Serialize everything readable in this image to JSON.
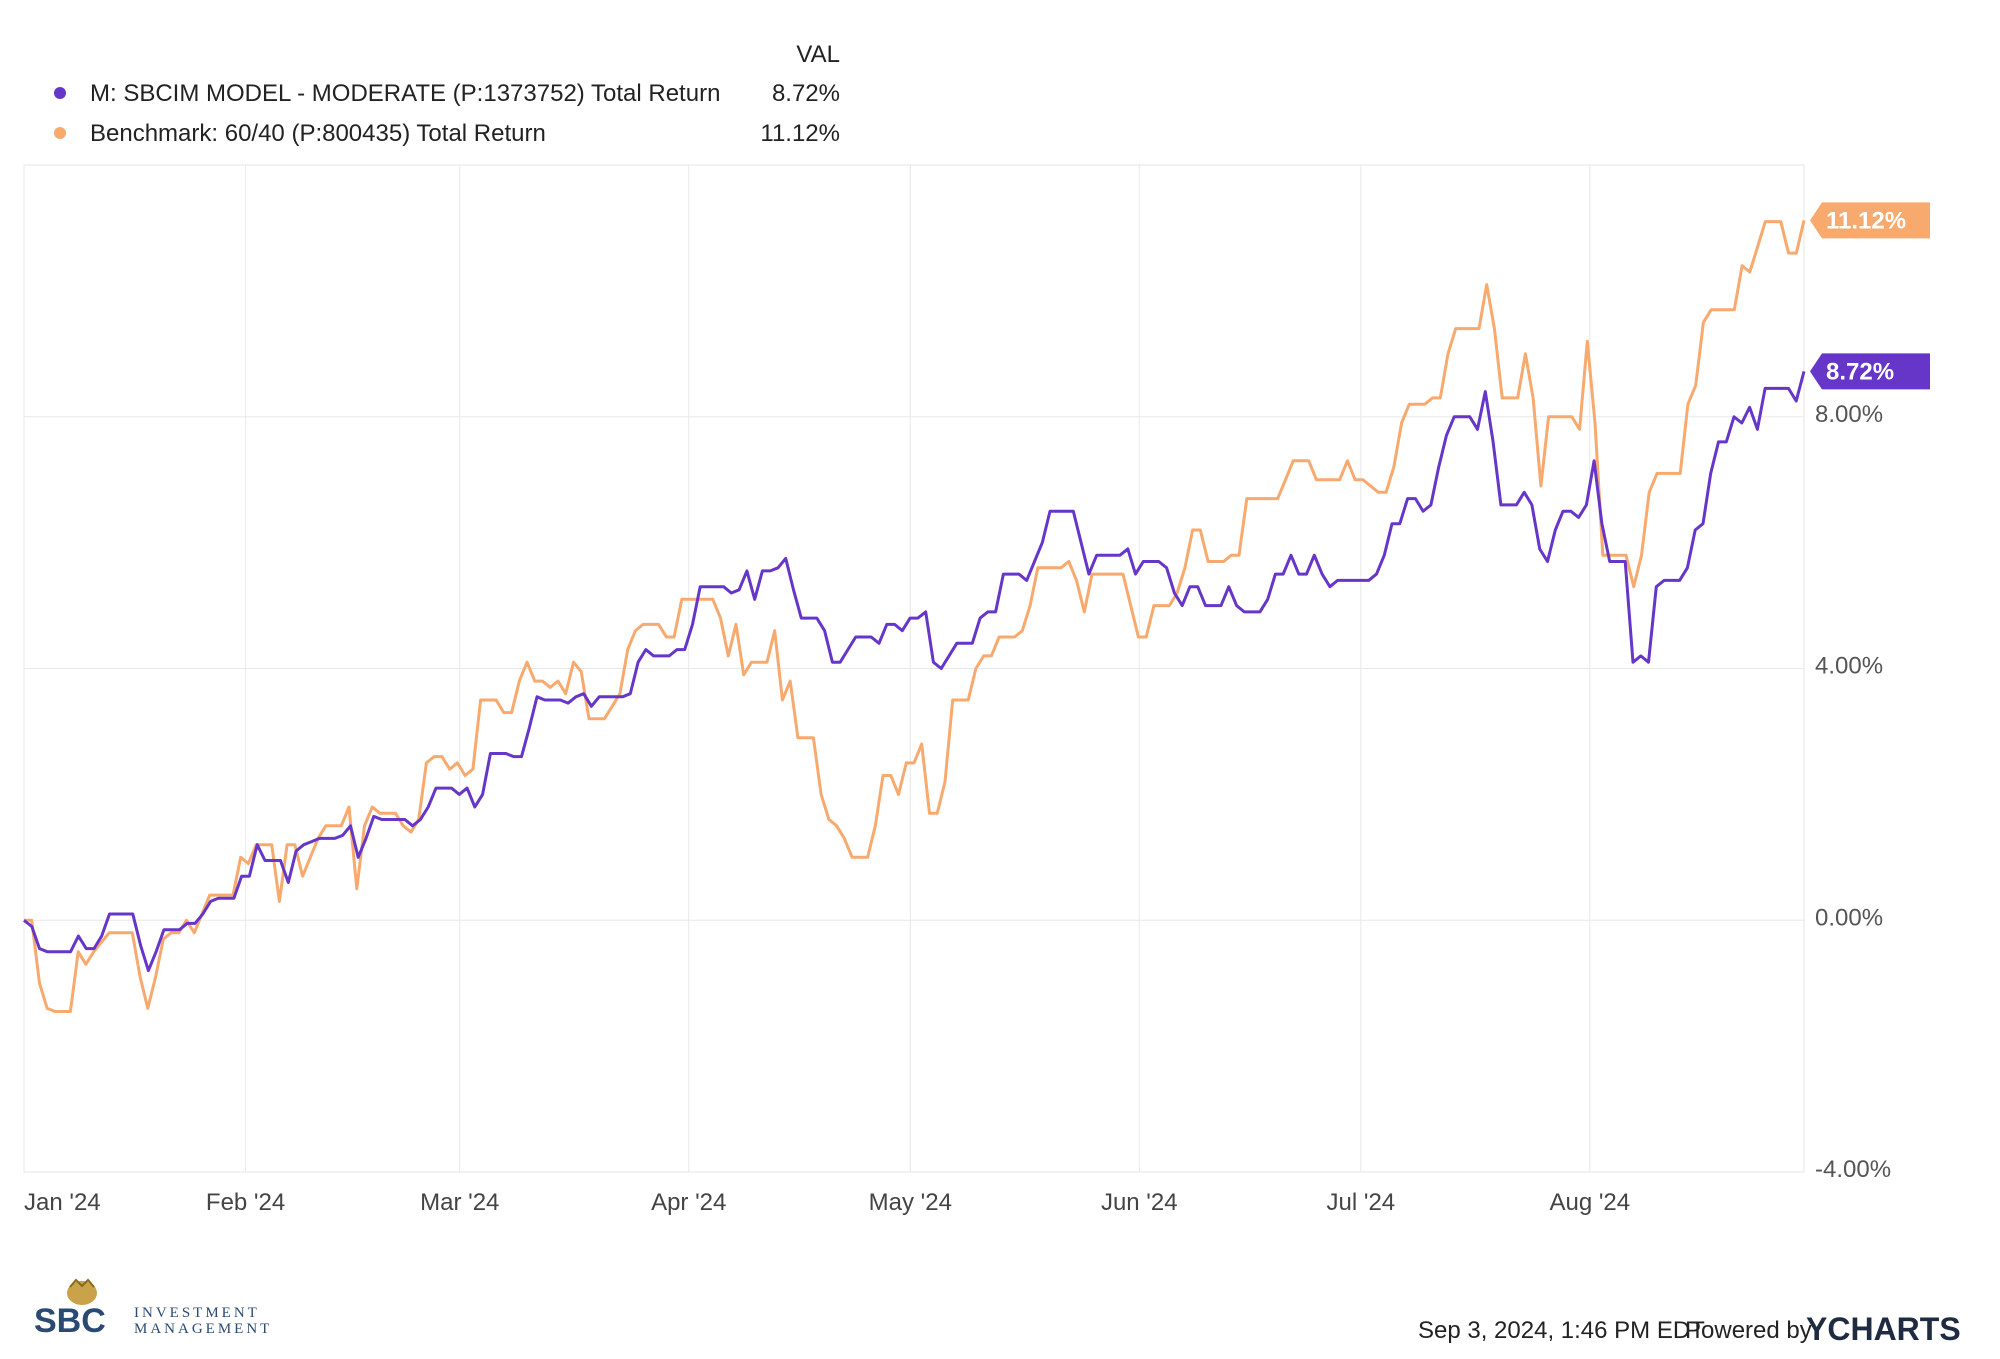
{
  "legend": {
    "header": "VAL",
    "items": [
      {
        "label": "M: SBCIM MODEL - MODERATE (P:1373752) Total Return",
        "value": "8.72%",
        "color": "#6636c9"
      },
      {
        "label": "Benchmark: 60/40 (P:800435) Total Return",
        "value": "11.12%",
        "color": "#f7a96e"
      }
    ]
  },
  "badges": [
    {
      "text": "11.12%",
      "color": "#f7a96e"
    },
    {
      "text": "8.72%",
      "color": "#6636c9"
    }
  ],
  "footer": {
    "timestamp": "Sep 3, 2024, 1:46 PM EDT",
    "powered_by": "Powered by",
    "brand": "YCHARTS",
    "logo_line1": "SBC",
    "logo_line2": "INVESTMENT",
    "logo_line3": "MANAGEMENT"
  },
  "chart_data": {
    "type": "line",
    "x_start": "2024-01-02",
    "x_end": "2024-08-30",
    "x_tick_labels": [
      "Jan '24",
      "Feb '24",
      "Mar '24",
      "Apr '24",
      "May '24",
      "Jun '24",
      "Jul '24",
      "Aug '24"
    ],
    "x_tick_dates": [
      "2024-01-01",
      "2024-02-01",
      "2024-03-01",
      "2024-04-01",
      "2024-05-01",
      "2024-06-01",
      "2024-07-01",
      "2024-08-01"
    ],
    "y_ticks": [
      8,
      4,
      0,
      -4
    ],
    "y_tick_labels": [
      "8.00%",
      "4.00%",
      "0.00%",
      "-4.00%"
    ],
    "ylim": [
      -4,
      12
    ],
    "grid": true,
    "legend_position": "top-left",
    "series": [
      {
        "name": "M: SBCIM MODEL - MODERATE (P:1373752) Total Return",
        "color": "#6636c9",
        "values": [
          0.0,
          -0.1,
          -0.45,
          -0.5,
          -0.5,
          -0.5,
          -0.5,
          -0.25,
          -0.45,
          -0.45,
          -0.25,
          0.1,
          0.1,
          0.1,
          0.1,
          -0.4,
          -0.8,
          -0.5,
          -0.15,
          -0.15,
          -0.15,
          -0.05,
          -0.05,
          0.1,
          0.3,
          0.35,
          0.35,
          0.35,
          0.7,
          0.7,
          1.2,
          0.95,
          0.95,
          0.95,
          0.6,
          1.1,
          1.2,
          1.25,
          1.3,
          1.3,
          1.3,
          1.35,
          1.5,
          1.0,
          1.3,
          1.65,
          1.6,
          1.6,
          1.6,
          1.6,
          1.5,
          1.6,
          1.8,
          2.1,
          2.1,
          2.1,
          2.0,
          2.1,
          1.8,
          2.0,
          2.65,
          2.65,
          2.65,
          2.6,
          2.6,
          3.05,
          3.55,
          3.5,
          3.5,
          3.5,
          3.45,
          3.55,
          3.6,
          3.4,
          3.55,
          3.55,
          3.55,
          3.55,
          3.6,
          4.1,
          4.3,
          4.2,
          4.2,
          4.2,
          4.3,
          4.3,
          4.7,
          5.3,
          5.3,
          5.3,
          5.3,
          5.2,
          5.25,
          5.55,
          5.1,
          5.55,
          5.55,
          5.6,
          5.75,
          5.25,
          4.8,
          4.8,
          4.8,
          4.6,
          4.1,
          4.1,
          4.3,
          4.5,
          4.5,
          4.5,
          4.4,
          4.7,
          4.7,
          4.6,
          4.8,
          4.8,
          4.9,
          4.1,
          4.0,
          4.2,
          4.4,
          4.4,
          4.4,
          4.8,
          4.9,
          4.9,
          5.5,
          5.5,
          5.5,
          5.4,
          5.7,
          6.0,
          6.5,
          6.5,
          6.5,
          6.5,
          6.0,
          5.5,
          5.8,
          5.8,
          5.8,
          5.8,
          5.9,
          5.5,
          5.7,
          5.7,
          5.7,
          5.6,
          5.2,
          5.0,
          5.3,
          5.3,
          5.0,
          5.0,
          5.0,
          5.3,
          5.0,
          4.9,
          4.9,
          4.9,
          5.1,
          5.5,
          5.5,
          5.8,
          5.5,
          5.5,
          5.8,
          5.5,
          5.3,
          5.4,
          5.4,
          5.4,
          5.4,
          5.4,
          5.5,
          5.8,
          6.3,
          6.3,
          6.7,
          6.7,
          6.5,
          6.6,
          7.2,
          7.7,
          8.0,
          8.0,
          8.0,
          7.8,
          8.4,
          7.6,
          6.6,
          6.6,
          6.6,
          6.8,
          6.6,
          5.9,
          5.7,
          6.2,
          6.5,
          6.5,
          6.4,
          6.6,
          7.3,
          6.3,
          5.7,
          5.7,
          5.7,
          4.1,
          4.2,
          4.1,
          5.3,
          5.4,
          5.4,
          5.4,
          5.6,
          6.2,
          6.3,
          7.1,
          7.6,
          7.6,
          8.0,
          7.9,
          8.15,
          7.8,
          8.45,
          8.45,
          8.45,
          8.45,
          8.25,
          8.72
        ]
      },
      {
        "name": "Benchmark: 60/40 (P:800435) Total Return",
        "color": "#f7a96e",
        "values": [
          0.0,
          0.0,
          -1.0,
          -1.4,
          -1.45,
          -1.45,
          -1.45,
          -0.5,
          -0.7,
          -0.5,
          -0.35,
          -0.2,
          -0.2,
          -0.2,
          -0.2,
          -0.9,
          -1.4,
          -0.9,
          -0.3,
          -0.2,
          -0.2,
          0.0,
          -0.2,
          0.1,
          0.4,
          0.4,
          0.4,
          0.4,
          1.0,
          0.9,
          1.2,
          1.2,
          1.2,
          0.3,
          1.2,
          1.2,
          0.7,
          1.0,
          1.3,
          1.5,
          1.5,
          1.5,
          1.8,
          0.5,
          1.5,
          1.8,
          1.7,
          1.7,
          1.7,
          1.5,
          1.4,
          1.6,
          2.5,
          2.6,
          2.6,
          2.4,
          2.5,
          2.3,
          2.4,
          3.5,
          3.5,
          3.5,
          3.3,
          3.3,
          3.8,
          4.1,
          3.8,
          3.8,
          3.7,
          3.8,
          3.6,
          4.1,
          3.95,
          3.2,
          3.2,
          3.2,
          3.4,
          3.6,
          4.3,
          4.6,
          4.7,
          4.7,
          4.7,
          4.5,
          4.5,
          5.1,
          5.1,
          5.1,
          5.1,
          5.1,
          4.8,
          4.2,
          4.7,
          3.9,
          4.1,
          4.1,
          4.1,
          4.6,
          3.5,
          3.8,
          2.9,
          2.9,
          2.9,
          2.0,
          1.6,
          1.5,
          1.3,
          1.0,
          1.0,
          1.0,
          1.5,
          2.3,
          2.3,
          2.0,
          2.5,
          2.5,
          2.8,
          1.7,
          1.7,
          2.2,
          3.5,
          3.5,
          3.5,
          4.0,
          4.2,
          4.2,
          4.5,
          4.5,
          4.5,
          4.6,
          5.0,
          5.6,
          5.6,
          5.6,
          5.6,
          5.7,
          5.4,
          4.9,
          5.5,
          5.5,
          5.5,
          5.5,
          5.5,
          5.0,
          4.5,
          4.5,
          5.0,
          5.0,
          5.0,
          5.2,
          5.6,
          6.2,
          6.2,
          5.7,
          5.7,
          5.7,
          5.8,
          5.8,
          6.7,
          6.7,
          6.7,
          6.7,
          6.7,
          7.0,
          7.3,
          7.3,
          7.3,
          7.0,
          7.0,
          7.0,
          7.0,
          7.3,
          7.0,
          7.0,
          6.9,
          6.8,
          6.8,
          7.2,
          7.9,
          8.2,
          8.2,
          8.2,
          8.3,
          8.3,
          9.0,
          9.4,
          9.4,
          9.4,
          9.4,
          10.1,
          9.4,
          8.3,
          8.3,
          8.3,
          9.0,
          8.3,
          6.9,
          8.0,
          8.0,
          8.0,
          8.0,
          7.8,
          9.2,
          7.9,
          5.8,
          5.8,
          5.8,
          5.8,
          5.3,
          5.8,
          6.8,
          7.1,
          7.1,
          7.1,
          7.1,
          8.2,
          8.5,
          9.5,
          9.7,
          9.7,
          9.7,
          9.7,
          10.4,
          10.3,
          10.7,
          11.1,
          11.1,
          11.1,
          10.6,
          10.6,
          11.12
        ]
      }
    ]
  }
}
